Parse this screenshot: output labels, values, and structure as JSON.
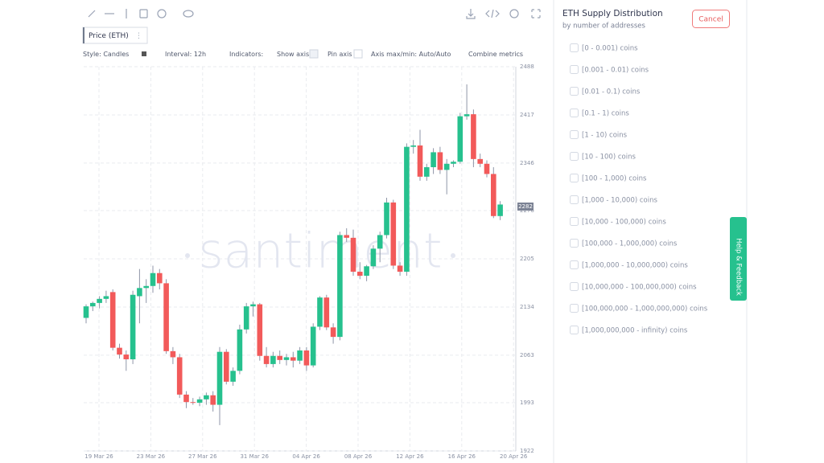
{
  "toolbar": {
    "legend": "Price (ETH)",
    "options": [
      "Style: Candles",
      "Interval: 12h",
      "Indicators:",
      "Show axis",
      "Pin axis",
      "Axis max/min: Auto/Auto",
      "Combine metrics"
    ]
  },
  "chart": {
    "type": "candlestick",
    "watermark": "santiment",
    "candles": [
      [
        2118,
        2138,
        2110,
        2135
      ],
      [
        2135,
        2142,
        2128,
        2140
      ],
      [
        2140,
        2150,
        2132,
        2146
      ],
      [
        2146,
        2158,
        2140,
        2150
      ],
      [
        2156,
        2160,
        2070,
        2074
      ],
      [
        2074,
        2080,
        2058,
        2064
      ],
      [
        2064,
        2070,
        2040,
        2057
      ],
      [
        2057,
        2158,
        2050,
        2152
      ],
      [
        2150,
        2190,
        2110,
        2162
      ],
      [
        2162,
        2175,
        2140,
        2165
      ],
      [
        2165,
        2195,
        2155,
        2184
      ],
      [
        2184,
        2190,
        2160,
        2169
      ],
      [
        2169,
        2175,
        2065,
        2069
      ],
      [
        2069,
        2075,
        2050,
        2060
      ],
      [
        2060,
        2065,
        2000,
        2005
      ],
      [
        2005,
        2010,
        1985,
        1994
      ],
      [
        1994,
        2000,
        1990,
        1993
      ],
      [
        1993,
        2002,
        1988,
        1998
      ],
      [
        1998,
        2008,
        1990,
        2004
      ],
      [
        2004,
        2010,
        1980,
        1990
      ],
      [
        1990,
        2075,
        1960,
        2068
      ],
      [
        2068,
        2072,
        2020,
        2024
      ],
      [
        2024,
        2045,
        2018,
        2040
      ],
      [
        2040,
        2108,
        2035,
        2101
      ],
      [
        2101,
        2140,
        2095,
        2135
      ],
      [
        2135,
        2142,
        2120,
        2138
      ],
      [
        2138,
        2140,
        2055,
        2062
      ],
      [
        2062,
        2075,
        2045,
        2050
      ],
      [
        2050,
        2068,
        2045,
        2062
      ],
      [
        2062,
        2070,
        2050,
        2056
      ],
      [
        2056,
        2065,
        2048,
        2060
      ],
      [
        2060,
        2068,
        2045,
        2055
      ],
      [
        2055,
        2075,
        2050,
        2070
      ],
      [
        2070,
        2075,
        2040,
        2048
      ],
      [
        2048,
        2110,
        2045,
        2105
      ],
      [
        2105,
        2150,
        2100,
        2148
      ],
      [
        2148,
        2152,
        2100,
        2104
      ],
      [
        2104,
        2110,
        2080,
        2090
      ],
      [
        2090,
        2245,
        2085,
        2240
      ],
      [
        2240,
        2250,
        2230,
        2236
      ],
      [
        2236,
        2248,
        2180,
        2186
      ],
      [
        2186,
        2200,
        2175,
        2180
      ],
      [
        2180,
        2196,
        2172,
        2194
      ],
      [
        2194,
        2225,
        2190,
        2220
      ],
      [
        2220,
        2245,
        2200,
        2240
      ],
      [
        2240,
        2295,
        2235,
        2288
      ],
      [
        2288,
        2292,
        2190,
        2195
      ],
      [
        2195,
        2200,
        2180,
        2186
      ],
      [
        2186,
        2375,
        2180,
        2370
      ],
      [
        2370,
        2380,
        2360,
        2372
      ],
      [
        2372,
        2395,
        2320,
        2326
      ],
      [
        2326,
        2345,
        2320,
        2340
      ],
      [
        2340,
        2368,
        2330,
        2362
      ],
      [
        2362,
        2370,
        2330,
        2336
      ],
      [
        2336,
        2352,
        2300,
        2345
      ],
      [
        2345,
        2350,
        2340,
        2348
      ],
      [
        2348,
        2420,
        2345,
        2415
      ],
      [
        2415,
        2462,
        2410,
        2418
      ],
      [
        2418,
        2425,
        2340,
        2352
      ],
      [
        2352,
        2360,
        2340,
        2345
      ],
      [
        2345,
        2350,
        2325,
        2330
      ],
      [
        2330,
        2340,
        2265,
        2268
      ],
      [
        2268,
        2290,
        2262,
        2285
      ]
    ],
    "ylim": [
      1922,
      2488
    ],
    "yticks": [
      2488,
      2417,
      2346,
      2276,
      2205,
      2134,
      2063,
      1993,
      1922
    ],
    "xticks": [
      "19 Mar 26",
      "23 Mar 26",
      "27 Mar 26",
      "31 Mar 26",
      "04 Apr 26",
      "08 Apr 26",
      "12 Apr 26",
      "16 Apr 26",
      "20 Apr 26"
    ],
    "price_label": 2282
  },
  "panel": {
    "title": "ETH Supply Distribution",
    "subtitle": "by number of addresses",
    "cancel": "Cancel",
    "items": [
      "[0 - 0.001) coins",
      "[0.001 - 0.01) coins",
      "[0.01 - 0.1) coins",
      "[0.1 - 1) coins",
      "[1 - 10) coins",
      "[10 - 100) coins",
      "[100 - 1,000) coins",
      "[1,000 - 10,000) coins",
      "[10,000 - 100,000) coins",
      "[100,000 - 1,000,000) coins",
      "[1,000,000 - 10,000,000) coins",
      "[10,000,000 - 100,000,000) coins",
      "[100,000,000 - 1,000,000,000) coins",
      "[1,000,000,000 - infinity) coins"
    ]
  },
  "help": "Help & Feedback"
}
